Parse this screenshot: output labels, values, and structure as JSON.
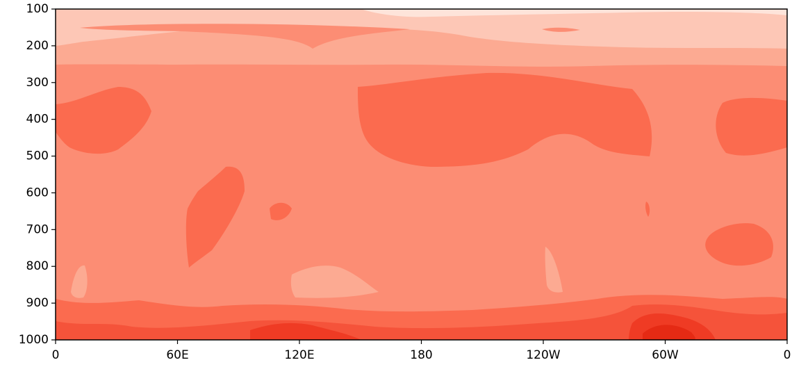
{
  "chart_data": {
    "type": "contour",
    "xticks": [
      0,
      {
        "value": 60,
        "label": "60E"
      },
      {
        "value": 120,
        "label": "120E"
      },
      180,
      {
        "value": 240,
        "label": "120W"
      },
      {
        "value": 300,
        "label": "60W"
      },
      {
        "value": 360,
        "label": "0"
      }
    ],
    "xlim": [
      0,
      360
    ],
    "ylim": [
      1000,
      100
    ],
    "yticks": [
      100,
      200,
      300,
      400,
      500,
      600,
      700,
      800,
      900,
      1000
    ],
    "colors": [
      "#fee4da",
      "#fdc7b6",
      "#fcaa92",
      "#fc8d74",
      "#fb6b4f",
      "#f5533a",
      "#ef3b24",
      "#e52a14"
    ]
  }
}
